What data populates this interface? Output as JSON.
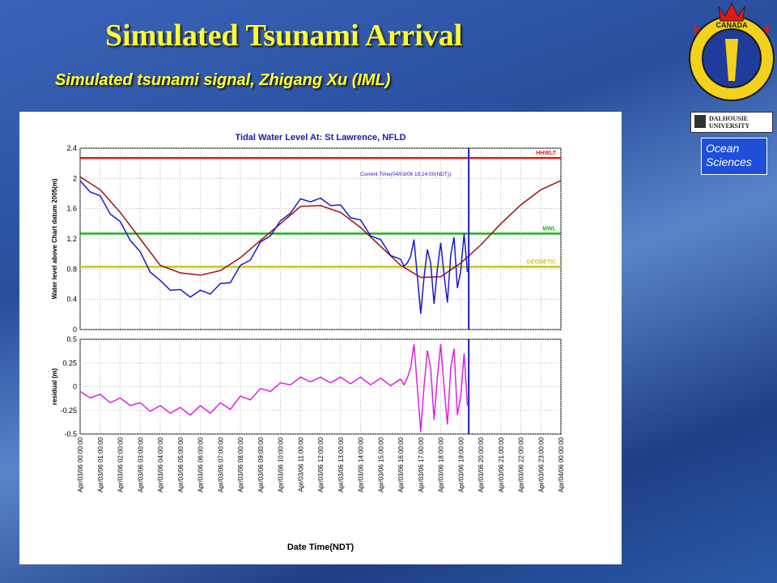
{
  "slide": {
    "title": "Simulated Tsunami Arrival",
    "subtitle": "Simulated tsunami signal, Zhigang Xu (IML)",
    "emblem_text": "CANADA",
    "university": "DALHOUSIE UNIVERSITY",
    "department": "Ocean Sciences"
  },
  "chart_data": [
    {
      "type": "line",
      "title": "Tidal Water Level At: St Lawrence, NFLD",
      "y_label": "Water level above Chart datum 2005(m)",
      "ylim": [
        0,
        2.4
      ],
      "yticks": [
        0,
        0.4,
        0.8,
        1.2,
        1.6,
        2,
        2.4
      ],
      "grid": true,
      "xlim": [
        "Apr/03/06 00:00:00",
        "Apr/04/06 00:00:00"
      ],
      "reference_lines": [
        {
          "label": "HHWLT",
          "value": 2.27,
          "color": "#e01818"
        },
        {
          "label": "MWL",
          "value": 1.27,
          "color": "#18b418"
        },
        {
          "label": "GEODETIC",
          "value": 0.83,
          "color": "#c8c81a"
        }
      ],
      "current_time": {
        "label": "Current Time(04/03/06 19:24:00(NDT))",
        "x": "Apr/03/06 19:24:00",
        "color": "#1a1ad0"
      },
      "series": [
        {
          "color": "#a01010",
          "x": [
            "Apr/03/06 00:00:00",
            "Apr/03/06 01:00:00",
            "Apr/03/06 02:00:00",
            "Apr/03/06 03:00:00",
            "Apr/03/06 04:00:00",
            "Apr/03/06 05:00:00",
            "Apr/03/06 06:00:00",
            "Apr/03/06 07:00:00",
            "Apr/03/06 08:00:00",
            "Apr/03/06 09:00:00",
            "Apr/03/06 10:00:00",
            "Apr/03/06 11:00:00",
            "Apr/03/06 12:00:00",
            "Apr/03/06 13:00:00",
            "Apr/03/06 14:00:00",
            "Apr/03/06 15:00:00",
            "Apr/03/06 16:00:00",
            "Apr/03/06 17:00:00",
            "Apr/03/06 18:00:00",
            "Apr/03/06 19:00:00",
            "Apr/03/06 20:00:00",
            "Apr/03/06 21:00:00",
            "Apr/03/06 22:00:00",
            "Apr/03/06 23:00:00",
            "Apr/04/06 00:00:00"
          ],
          "values": [
            2.02,
            1.85,
            1.55,
            1.2,
            0.85,
            0.75,
            0.72,
            0.78,
            0.95,
            1.18,
            1.4,
            1.63,
            1.64,
            1.55,
            1.35,
            1.1,
            0.85,
            0.69,
            0.7,
            0.88,
            1.12,
            1.4,
            1.65,
            1.85,
            1.97
          ]
        },
        {
          "color": "#1a1ad0",
          "x": [
            "Apr/03/06 00:00:00",
            "Apr/03/06 00:30:00",
            "Apr/03/06 01:00:00",
            "Apr/03/06 01:30:00",
            "Apr/03/06 02:00:00",
            "Apr/03/06 02:30:00",
            "Apr/03/06 03:00:00",
            "Apr/03/06 03:30:00",
            "Apr/03/06 04:00:00",
            "Apr/03/06 04:30:00",
            "Apr/03/06 05:00:00",
            "Apr/03/06 05:30:00",
            "Apr/03/06 06:00:00",
            "Apr/03/06 06:30:00",
            "Apr/03/06 07:00:00",
            "Apr/03/06 07:30:00",
            "Apr/03/06 08:00:00",
            "Apr/03/06 08:30:00",
            "Apr/03/06 09:00:00",
            "Apr/03/06 09:30:00",
            "Apr/03/06 10:00:00",
            "Apr/03/06 10:30:00",
            "Apr/03/06 11:00:00",
            "Apr/03/06 11:30:00",
            "Apr/03/06 12:00:00",
            "Apr/03/06 12:30:00",
            "Apr/03/06 13:00:00",
            "Apr/03/06 13:30:00",
            "Apr/03/06 14:00:00",
            "Apr/03/06 14:30:00",
            "Apr/03/06 15:00:00",
            "Apr/03/06 15:30:00",
            "Apr/03/06 16:00:00",
            "Apr/03/06 16:10:00",
            "Apr/03/06 16:20:00",
            "Apr/03/06 16:30:00",
            "Apr/03/06 16:40:00",
            "Apr/03/06 16:50:00",
            "Apr/03/06 17:00:00",
            "Apr/03/06 17:10:00",
            "Apr/03/06 17:20:00",
            "Apr/03/06 17:30:00",
            "Apr/03/06 17:40:00",
            "Apr/03/06 17:50:00",
            "Apr/03/06 18:00:00",
            "Apr/03/06 18:10:00",
            "Apr/03/06 18:20:00",
            "Apr/03/06 18:30:00",
            "Apr/03/06 18:40:00",
            "Apr/03/06 18:50:00",
            "Apr/03/06 19:00:00",
            "Apr/03/06 19:10:00",
            "Apr/03/06 19:20:00"
          ],
          "values": [
            1.97,
            1.82,
            1.77,
            1.53,
            1.43,
            1.18,
            1.03,
            0.76,
            0.65,
            0.52,
            0.53,
            0.43,
            0.52,
            0.47,
            0.61,
            0.62,
            0.85,
            0.92,
            1.16,
            1.24,
            1.44,
            1.54,
            1.73,
            1.69,
            1.74,
            1.64,
            1.65,
            1.48,
            1.45,
            1.24,
            1.19,
            0.98,
            0.93,
            0.84,
            0.88,
            0.97,
            1.19,
            0.71,
            0.21,
            0.69,
            1.06,
            0.88,
            0.34,
            0.8,
            1.15,
            0.73,
            0.36,
            0.99,
            1.22,
            0.55,
            0.78,
            1.27,
            0.76
          ]
        }
      ]
    },
    {
      "type": "line",
      "y_label": "residual (m)",
      "x_label": "Date Time(NDT)",
      "ylim": [
        -0.5,
        0.5
      ],
      "yticks": [
        -0.5,
        -0.25,
        0,
        0.25,
        0.5
      ],
      "grid": true,
      "xlim": [
        "Apr/03/06 00:00:00",
        "Apr/04/06 00:00:00"
      ],
      "xticks": [
        "Apr/03/06 00:00:00",
        "Apr/03/06 01:00:00",
        "Apr/03/06 02:00:00",
        "Apr/03/06 03:00:00",
        "Apr/03/06 04:00:00",
        "Apr/03/06 05:00:00",
        "Apr/03/06 06:00:00",
        "Apr/03/06 07:00:00",
        "Apr/03/06 08:00:00",
        "Apr/03/06 09:00:00",
        "Apr/03/06 10:00:00",
        "Apr/03/06 11:00:00",
        "Apr/03/06 12:00:00",
        "Apr/03/06 13:00:00",
        "Apr/03/06 14:00:00",
        "Apr/03/06 15:00:00",
        "Apr/03/06 16:00:00",
        "Apr/03/06 17:00:00",
        "Apr/03/06 18:00:00",
        "Apr/03/06 19:00:00",
        "Apr/03/06 20:00:00",
        "Apr/03/06 21:00:00",
        "Apr/03/06 22:00:00",
        "Apr/03/06 23:00:00",
        "Apr/04/06 00:00:00"
      ],
      "current_time": {
        "x": "Apr/03/06 19:24:00",
        "color": "#1a1ad0"
      },
      "series": [
        {
          "color": "#e020e0",
          "x": [
            "Apr/03/06 00:00:00",
            "Apr/03/06 00:30:00",
            "Apr/03/06 01:00:00",
            "Apr/03/06 01:30:00",
            "Apr/03/06 02:00:00",
            "Apr/03/06 02:30:00",
            "Apr/03/06 03:00:00",
            "Apr/03/06 03:30:00",
            "Apr/03/06 04:00:00",
            "Apr/03/06 04:30:00",
            "Apr/03/06 05:00:00",
            "Apr/03/06 05:30:00",
            "Apr/03/06 06:00:00",
            "Apr/03/06 06:30:00",
            "Apr/03/06 07:00:00",
            "Apr/03/06 07:30:00",
            "Apr/03/06 08:00:00",
            "Apr/03/06 08:30:00",
            "Apr/03/06 09:00:00",
            "Apr/03/06 09:30:00",
            "Apr/03/06 10:00:00",
            "Apr/03/06 10:30:00",
            "Apr/03/06 11:00:00",
            "Apr/03/06 11:30:00",
            "Apr/03/06 12:00:00",
            "Apr/03/06 12:30:00",
            "Apr/03/06 13:00:00",
            "Apr/03/06 13:30:00",
            "Apr/03/06 14:00:00",
            "Apr/03/06 14:30:00",
            "Apr/03/06 15:00:00",
            "Apr/03/06 15:30:00",
            "Apr/03/06 16:00:00",
            "Apr/03/06 16:10:00",
            "Apr/03/06 16:20:00",
            "Apr/03/06 16:30:00",
            "Apr/03/06 16:40:00",
            "Apr/03/06 16:50:00",
            "Apr/03/06 17:00:00",
            "Apr/03/06 17:10:00",
            "Apr/03/06 17:20:00",
            "Apr/03/06 17:30:00",
            "Apr/03/06 17:40:00",
            "Apr/03/06 17:50:00",
            "Apr/03/06 18:00:00",
            "Apr/03/06 18:10:00",
            "Apr/03/06 18:20:00",
            "Apr/03/06 18:30:00",
            "Apr/03/06 18:40:00",
            "Apr/03/06 18:50:00",
            "Apr/03/06 19:00:00",
            "Apr/03/06 19:10:00",
            "Apr/03/06 19:20:00"
          ],
          "values": [
            -0.05,
            -0.12,
            -0.08,
            -0.17,
            -0.12,
            -0.2,
            -0.17,
            -0.26,
            -0.2,
            -0.28,
            -0.22,
            -0.3,
            -0.2,
            -0.28,
            -0.17,
            -0.24,
            -0.1,
            -0.14,
            -0.02,
            -0.05,
            0.04,
            0.02,
            0.1,
            0.05,
            0.1,
            0.04,
            0.1,
            0.03,
            0.1,
            0.02,
            0.09,
            0.01,
            0.08,
            0.02,
            0.09,
            0.2,
            0.45,
            0.0,
            -0.48,
            0.0,
            0.38,
            0.2,
            -0.35,
            0.1,
            0.45,
            0.0,
            -0.4,
            0.2,
            0.4,
            -0.3,
            -0.1,
            0.35,
            -0.2
          ]
        }
      ]
    }
  ]
}
